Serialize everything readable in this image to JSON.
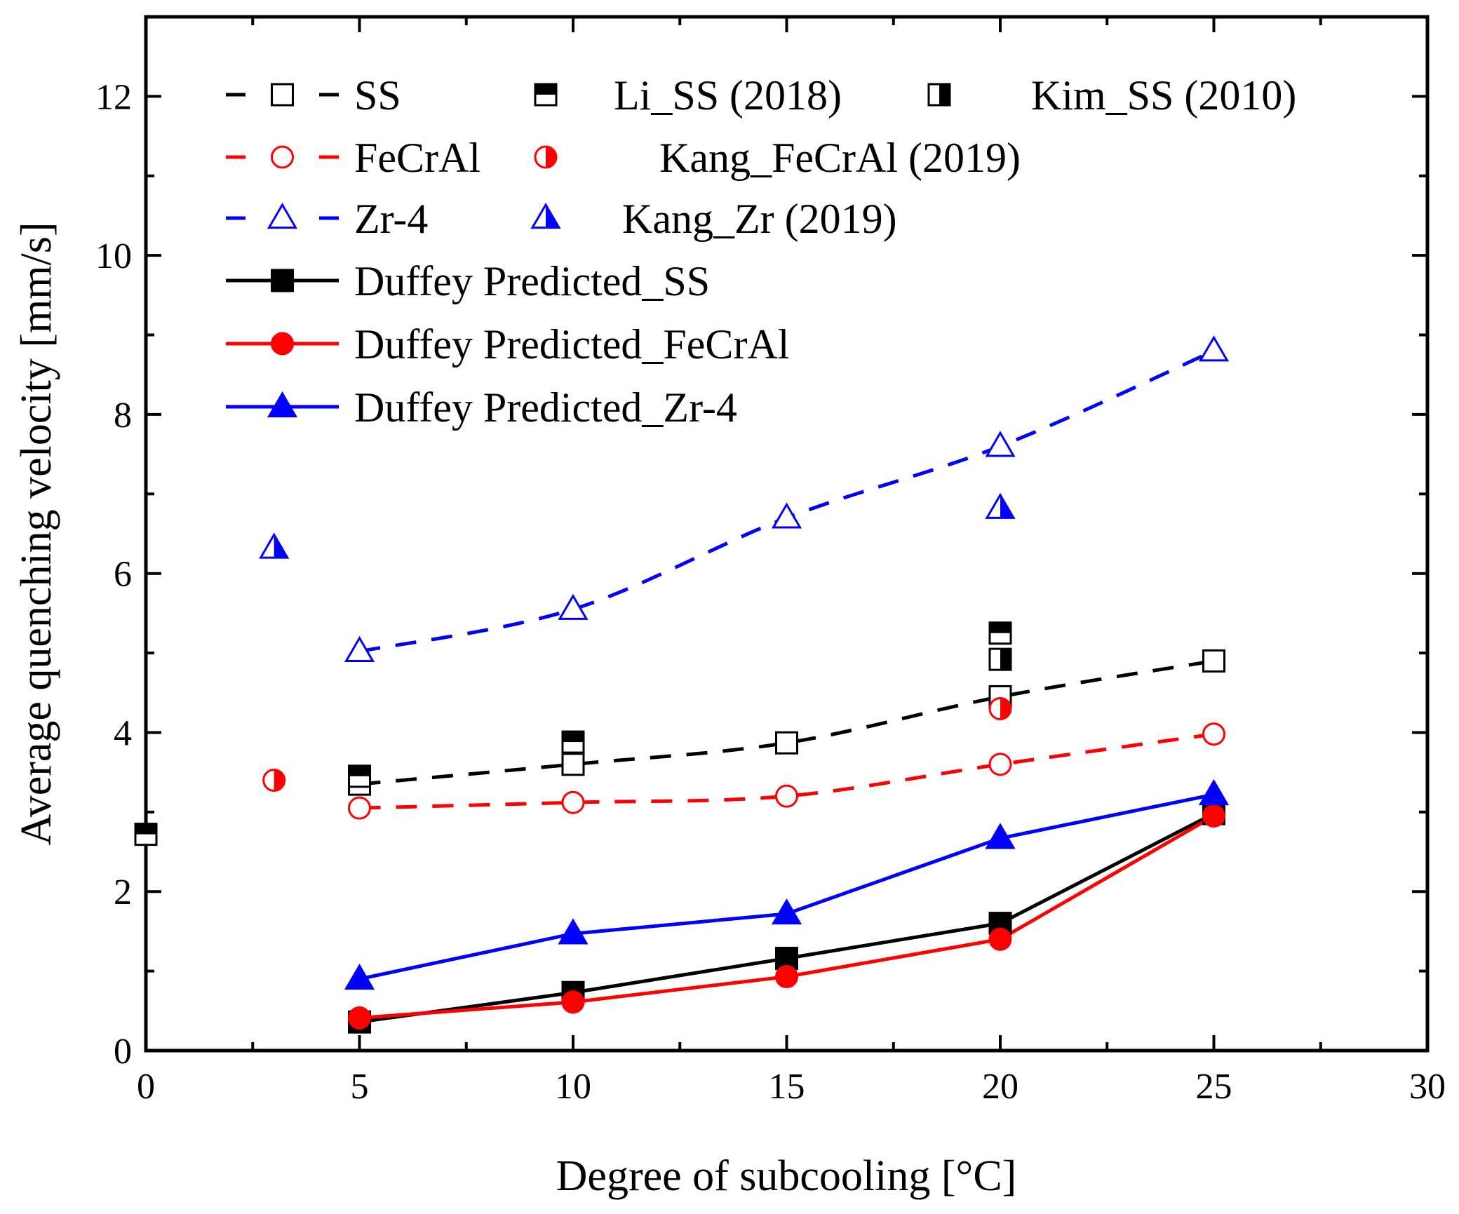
{
  "chart_data": {
    "type": "scatter",
    "title": "",
    "xlabel": "Degree of subcooling [°C]",
    "ylabel": "Average quenching velocity [mm/s]",
    "xlim": [
      0,
      30
    ],
    "ylim": [
      0,
      13
    ],
    "xticks": [
      "0",
      "5",
      "10",
      "15",
      "20",
      "25",
      "30"
    ],
    "yticks": [
      "0",
      "2",
      "4",
      "6",
      "8",
      "10",
      "12"
    ],
    "grid": false,
    "legend_position": "top-left",
    "series": [
      {
        "name": "SS",
        "color": "#000000",
        "line": "dashed",
        "marker": "square-open",
        "x": [
          5,
          10,
          15,
          20,
          25
        ],
        "y": [
          3.35,
          3.6,
          3.87,
          4.45,
          4.9
        ]
      },
      {
        "name": "FeCrAl",
        "color": "#ff0000",
        "line": "dashed",
        "marker": "circle-open",
        "x": [
          5,
          10,
          15,
          20,
          25
        ],
        "y": [
          3.05,
          3.12,
          3.2,
          3.6,
          3.98
        ]
      },
      {
        "name": "Zr-4",
        "color": "#0000ff",
        "line": "dashed",
        "marker": "triangle-open",
        "x": [
          5,
          10,
          15,
          20,
          25
        ],
        "y": [
          5.02,
          5.55,
          6.7,
          7.6,
          8.8
        ]
      },
      {
        "name": "Li_SS (2018)",
        "color": "#000000",
        "line": "none",
        "marker": "square-top-half",
        "x": [
          0,
          5,
          10,
          20
        ],
        "y": [
          2.72,
          3.45,
          3.88,
          5.25
        ]
      },
      {
        "name": "Kim_SS (2010)",
        "color": "#000000",
        "line": "none",
        "marker": "square-right-half",
        "x": [
          20
        ],
        "y": [
          4.92
        ]
      },
      {
        "name": "Kang_FeCrAl (2019)",
        "color": "#ff0000",
        "line": "none",
        "marker": "circle-right-half",
        "x": [
          3,
          20
        ],
        "y": [
          3.4,
          4.3
        ]
      },
      {
        "name": "Kang_Zr (2019)",
        "color": "#0000ff",
        "line": "none",
        "marker": "triangle-right-half",
        "x": [
          3,
          20
        ],
        "y": [
          6.32,
          6.82
        ]
      },
      {
        "name": "Duffey Predicted_SS",
        "color": "#000000",
        "line": "solid",
        "marker": "square-filled",
        "x": [
          5,
          10,
          15,
          20,
          25
        ],
        "y": [
          0.36,
          0.73,
          1.16,
          1.6,
          2.98
        ]
      },
      {
        "name": "Duffey Predicted_FeCrAl",
        "color": "#ff0000",
        "line": "solid",
        "marker": "circle-filled",
        "x": [
          5,
          10,
          15,
          20,
          25
        ],
        "y": [
          0.41,
          0.61,
          0.93,
          1.4,
          2.95
        ]
      },
      {
        "name": "Duffey Predicted_Zr-4",
        "color": "#0000ff",
        "line": "solid",
        "marker": "triangle-filled",
        "x": [
          5,
          10,
          15,
          20,
          25
        ],
        "y": [
          0.9,
          1.47,
          1.72,
          2.67,
          3.22
        ]
      }
    ],
    "legend": {
      "rows": [
        [
          "SS",
          "Li_SS (2018)",
          "Kim_SS (2010)"
        ],
        [
          "FeCrAl",
          "Kang_FeCrAl (2019)"
        ],
        [
          "Zr-4",
          "Kang_Zr (2019)"
        ],
        [
          "Duffey Predicted_SS"
        ],
        [
          "Duffey Predicted_FeCrAl"
        ],
        [
          "Duffey Predicted_Zr-4"
        ]
      ]
    }
  }
}
